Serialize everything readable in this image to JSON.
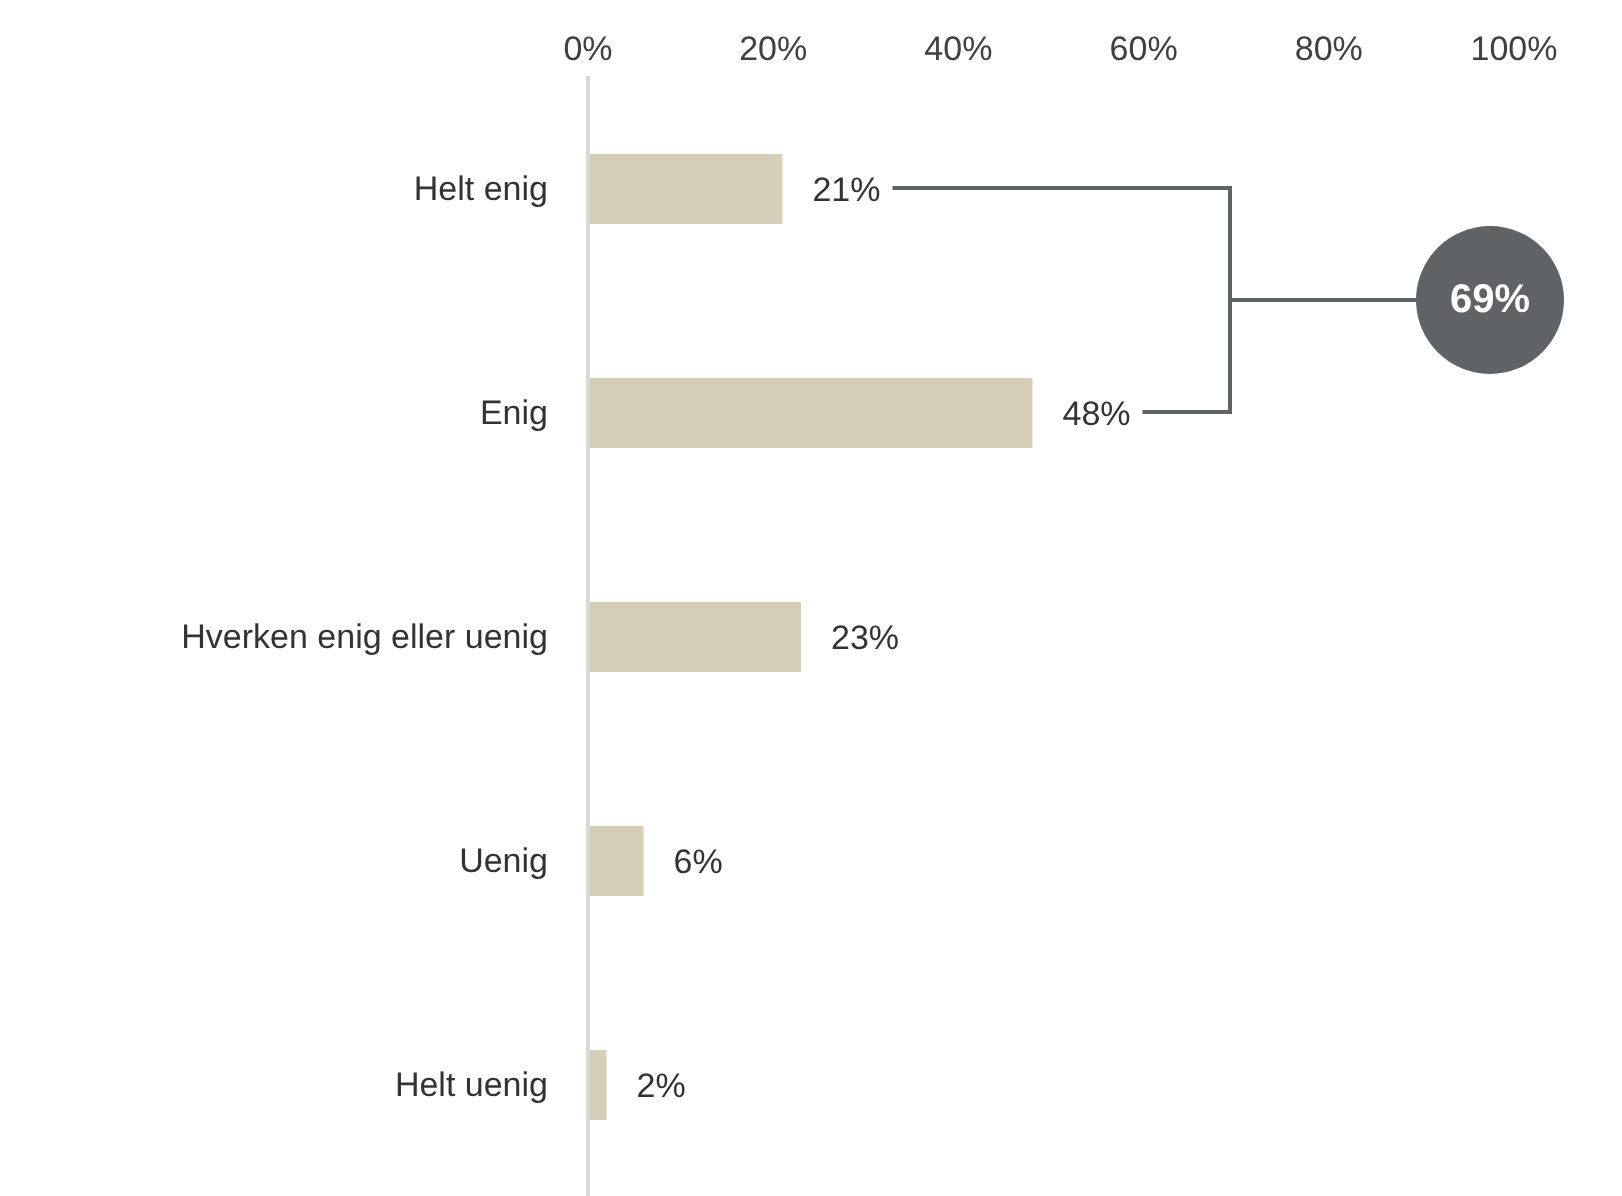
{
  "chart_data": {
    "type": "bar",
    "orientation": "horizontal",
    "categories": [
      "Helt enig",
      "Enig",
      "Hverken enig eller uenig",
      "Uenig",
      "Helt uenig"
    ],
    "values": [
      21,
      48,
      23,
      6,
      2
    ],
    "value_labels": [
      "21%",
      "48%",
      "23%",
      "6%",
      "2%"
    ],
    "color": "#d6cfb8",
    "xlim": [
      0,
      100
    ],
    "xticks": [
      {
        "value": 0,
        "label": "0%"
      },
      {
        "value": 20,
        "label": "20%"
      },
      {
        "value": 40,
        "label": "40%"
      },
      {
        "value": 60,
        "label": "60%"
      },
      {
        "value": 80,
        "label": "80%"
      },
      {
        "value": 100,
        "label": "100%"
      }
    ],
    "annotations": [
      "69%"
    ],
    "grid": false,
    "legend": false
  }
}
